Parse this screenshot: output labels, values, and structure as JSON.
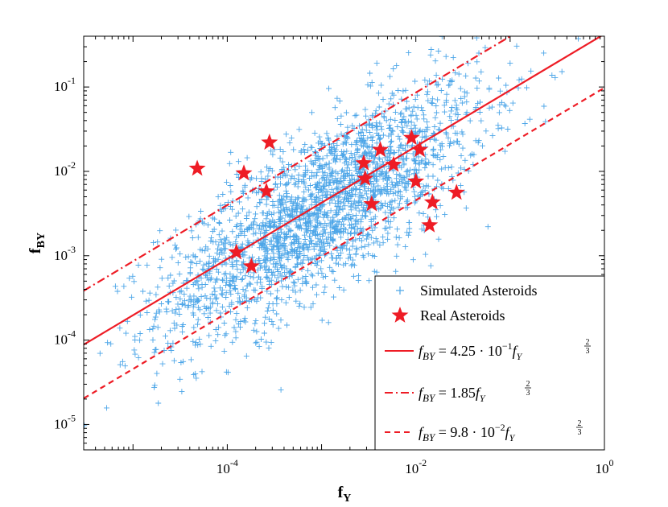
{
  "chart_data": {
    "type": "scatter",
    "title": "",
    "xlabel": "f",
    "xlabel_sub": "Y",
    "ylabel": "f",
    "ylabel_sub": "BY",
    "xscale": "log",
    "yscale": "log",
    "xlim": [
      3e-06,
      1
    ],
    "ylim": [
      5e-06,
      0.4
    ],
    "grid": false,
    "legend_position": "bottom-right",
    "x_ticks": [
      {
        "value": 0.0001,
        "base": "10",
        "exp": "-4"
      },
      {
        "value": 0.01,
        "base": "10",
        "exp": "-2"
      },
      {
        "value": 1,
        "base": "10",
        "exp": "0"
      }
    ],
    "y_ticks": [
      {
        "value": 1e-05,
        "base": "10",
        "exp": "-5"
      },
      {
        "value": 0.0001,
        "base": "10",
        "exp": "-4"
      },
      {
        "value": 0.001,
        "base": "10",
        "exp": "-3"
      },
      {
        "value": 0.01,
        "base": "10",
        "exp": "-2"
      },
      {
        "value": 0.1,
        "base": "10",
        "exp": "-1"
      }
    ],
    "simulated": {
      "name": "Simulated Asteroids",
      "color": "#4da6e8",
      "marker": "plus",
      "count": 2400,
      "center_log10_x": -3.0,
      "center_log10_y": -2.45,
      "spread_log10_x": 0.85,
      "slope": 0.667,
      "residual_spread": 0.48
    },
    "real": {
      "name": "Real Asteroids",
      "color": "#ee1c25",
      "marker": "star",
      "points": [
        {
          "x": 4.8e-05,
          "y": 0.0108
        },
        {
          "x": 0.00015,
          "y": 0.0095
        },
        {
          "x": 0.00028,
          "y": 0.022
        },
        {
          "x": 0.00026,
          "y": 0.0058
        },
        {
          "x": 0.000125,
          "y": 0.0011
        },
        {
          "x": 0.00018,
          "y": 0.00075
        },
        {
          "x": 0.0028,
          "y": 0.0125
        },
        {
          "x": 0.0042,
          "y": 0.018
        },
        {
          "x": 0.0058,
          "y": 0.012
        },
        {
          "x": 0.009,
          "y": 0.025
        },
        {
          "x": 0.011,
          "y": 0.018
        },
        {
          "x": 0.0029,
          "y": 0.0082
        },
        {
          "x": 0.0034,
          "y": 0.0041
        },
        {
          "x": 0.01,
          "y": 0.0076
        },
        {
          "x": 0.015,
          "y": 0.0043
        },
        {
          "x": 0.014,
          "y": 0.0023
        },
        {
          "x": 0.027,
          "y": 0.0056
        }
      ]
    },
    "lines": [
      {
        "name": "solid",
        "coef": 0.425,
        "exponent": 0.6667,
        "style": "solid",
        "color": "#ee1c25",
        "label_lhs": "f",
        "label_lhs_sub": "BY",
        "label_rhs": " = 4.25 · 10",
        "label_rhs_sup": "−1",
        "label_var": "f",
        "label_var_sub": "Y",
        "label_exp_num": "2",
        "label_exp_den": "3"
      },
      {
        "name": "dashdot",
        "coef": 1.85,
        "exponent": 0.6667,
        "style": "dashdot",
        "color": "#ee1c25",
        "label_lhs": "f",
        "label_lhs_sub": "BY",
        "label_rhs": " = 1.85",
        "label_rhs_sup": "",
        "label_var": "f",
        "label_var_sub": "Y",
        "label_exp_num": "2",
        "label_exp_den": "3"
      },
      {
        "name": "dashed",
        "coef": 0.098,
        "exponent": 0.6667,
        "style": "dashed",
        "color": "#ee1c25",
        "label_lhs": "f",
        "label_lhs_sub": "BY",
        "label_rhs": " = 9.8 · 10",
        "label_rhs_sup": "−2",
        "label_var": "f",
        "label_var_sub": "Y",
        "label_exp_num": "2",
        "label_exp_den": "3"
      }
    ]
  }
}
